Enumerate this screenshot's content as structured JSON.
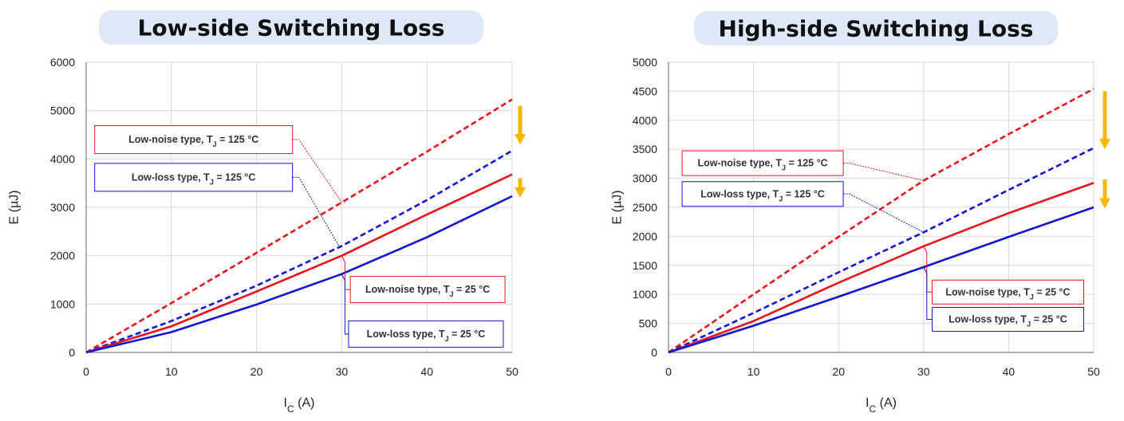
{
  "chart_data": [
    {
      "type": "line",
      "title": "Low-side Switching Loss",
      "xlabel_main": "I",
      "xlabel_sub": "C",
      "xlabel_unit": " (A)",
      "ylabel": "E (µJ)",
      "xlim": [
        0,
        50
      ],
      "ylim": [
        0,
        6000
      ],
      "xticks": [
        "0",
        "10",
        "20",
        "30",
        "40",
        "50"
      ],
      "yticks": [
        "0",
        "1000",
        "2000",
        "3000",
        "4000",
        "5000",
        "6000"
      ],
      "grid": true,
      "series": [
        {
          "name_pre": "Low-noise type, T",
          "name_sub": "J",
          "name_post": " = 125 °C",
          "color": "#e8141b",
          "dash": true,
          "x": [
            0,
            10,
            20,
            30,
            40,
            50
          ],
          "y": [
            0,
            1020,
            2060,
            3100,
            4150,
            5230
          ]
        },
        {
          "name_pre": "Low-loss type, T",
          "name_sub": "J",
          "name_post": " = 125 °C",
          "color": "#1515d4",
          "dash": true,
          "x": [
            0,
            10,
            20,
            30,
            40,
            50
          ],
          "y": [
            0,
            650,
            1380,
            2200,
            3150,
            4170
          ]
        },
        {
          "name_pre": "Low-noise type, T",
          "name_sub": "J",
          "name_post": " = 25 °C",
          "color": "#e8141b",
          "dash": false,
          "x": [
            0,
            10,
            20,
            30,
            40,
            50
          ],
          "y": [
            0,
            540,
            1260,
            2000,
            2850,
            3680
          ]
        },
        {
          "name_pre": "Low-loss type, T",
          "name_sub": "J",
          "name_post": " = 25 °C",
          "color": "#1515d4",
          "dash": false,
          "x": [
            0,
            10,
            20,
            30,
            40,
            50
          ],
          "y": [
            0,
            420,
            990,
            1620,
            2380,
            3230
          ]
        }
      ],
      "arrows": [
        {
          "x": 50,
          "y_from": 5100,
          "y_to": 4300
        },
        {
          "x": 50,
          "y_from": 3600,
          "y_to": 3200
        }
      ],
      "annotations": [
        {
          "series": 0,
          "box_x": 1.0,
          "box_y": 4400,
          "point_x": 30.0,
          "point_y": 3100
        },
        {
          "series": 1,
          "box_x": 1.0,
          "box_y": 3620,
          "point_x": 29.8,
          "point_y": 2160
        },
        {
          "series": 2,
          "box_x": 31.0,
          "box_y": 1300,
          "point_x": 30.0,
          "point_y": 2000
        },
        {
          "series": 3,
          "box_x": 30.8,
          "box_y": 380,
          "point_x": 30.0,
          "point_y": 1620
        }
      ]
    },
    {
      "type": "line",
      "title": "High-side Switching Loss",
      "xlabel_main": "I",
      "xlabel_sub": "C",
      "xlabel_unit": " (A)",
      "ylabel": "E (µJ)",
      "xlim": [
        0,
        50
      ],
      "ylim": [
        0,
        5000
      ],
      "xticks": [
        "0",
        "10",
        "20",
        "30",
        "40",
        "50"
      ],
      "yticks": [
        "0",
        "500",
        "1000",
        "1500",
        "2000",
        "2500",
        "3000",
        "3500",
        "4000",
        "4500",
        "5000"
      ],
      "grid": true,
      "series": [
        {
          "name_pre": "Low-noise type, T",
          "name_sub": "J",
          "name_post": " = 125 °C",
          "color": "#e8141b",
          "dash": true,
          "x": [
            0,
            10,
            20,
            30,
            40,
            50
          ],
          "y": [
            0,
            1000,
            1990,
            2960,
            3760,
            4540
          ]
        },
        {
          "name_pre": "Low-loss type, T",
          "name_sub": "J",
          "name_post": " = 125 °C",
          "color": "#1515d4",
          "dash": true,
          "x": [
            0,
            10,
            20,
            30,
            40,
            50
          ],
          "y": [
            0,
            680,
            1380,
            2070,
            2800,
            3520
          ]
        },
        {
          "name_pre": "Low-noise type, T",
          "name_sub": "J",
          "name_post": " = 25 °C",
          "color": "#e8141b",
          "dash": false,
          "x": [
            0,
            10,
            20,
            30,
            40,
            50
          ],
          "y": [
            0,
            540,
            1200,
            1830,
            2400,
            2920
          ]
        },
        {
          "name_pre": "Low-loss type, T",
          "name_sub": "J",
          "name_post": " = 25 °C",
          "color": "#1515d4",
          "dash": false,
          "x": [
            0,
            10,
            20,
            30,
            40,
            50
          ],
          "y": [
            0,
            460,
            960,
            1470,
            1990,
            2500
          ]
        }
      ],
      "arrows": [
        {
          "x": 50,
          "y_from": 4500,
          "y_to": 3500
        },
        {
          "x": 50,
          "y_from": 2980,
          "y_to": 2480
        }
      ],
      "annotations": [
        {
          "series": 0,
          "box_x": 1.6,
          "box_y": 3260,
          "point_x": 30.0,
          "point_y": 2960
        },
        {
          "series": 1,
          "box_x": 1.6,
          "box_y": 2730,
          "point_x": 30.0,
          "point_y": 2070
        },
        {
          "series": 2,
          "box_x": 31.0,
          "box_y": 1040,
          "point_x": 30.0,
          "point_y": 1830
        },
        {
          "series": 3,
          "box_x": 31.0,
          "box_y": 570,
          "point_x": 30.0,
          "point_y": 1470
        }
      ]
    }
  ]
}
